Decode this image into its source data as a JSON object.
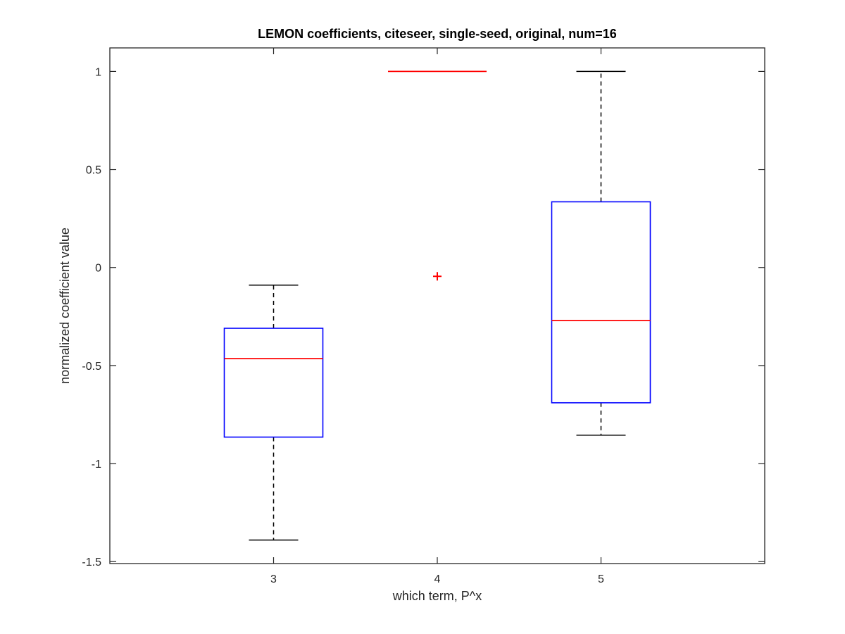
{
  "chart_data": {
    "type": "boxplot",
    "title": "LEMON coefficients, citeseer, single-seed, original, num=16",
    "xlabel": "which term, P^x",
    "ylabel": "normalized coefficient value",
    "categories": [
      "3",
      "4",
      "5"
    ],
    "ylim": [
      -1.51,
      1.12
    ],
    "yticks": [
      -1.5,
      -1,
      -0.5,
      0,
      0.5,
      1
    ],
    "ytick_labels": [
      "-1.5",
      "-1",
      "-0.5",
      "0",
      "0.5",
      "1"
    ],
    "boxes": [
      {
        "category": "3",
        "whisker_low": -1.39,
        "q1": -0.865,
        "median": -0.465,
        "q3": -0.31,
        "whisker_high": -0.09,
        "outliers": []
      },
      {
        "category": "4",
        "whisker_low": 1.0,
        "q1": 1.0,
        "median": 1.0,
        "q3": 1.0,
        "whisker_high": 1.0,
        "outliers": [
          -0.045
        ]
      },
      {
        "category": "5",
        "whisker_low": -0.855,
        "q1": -0.69,
        "median": -0.27,
        "q3": 0.335,
        "whisker_high": 1.0,
        "outliers": []
      }
    ],
    "grid": false,
    "colors": {
      "box": "#0000ff",
      "median": "#ff0000",
      "whisker": "#000000",
      "outlier": "#ff0000",
      "axis": "#262626"
    }
  }
}
